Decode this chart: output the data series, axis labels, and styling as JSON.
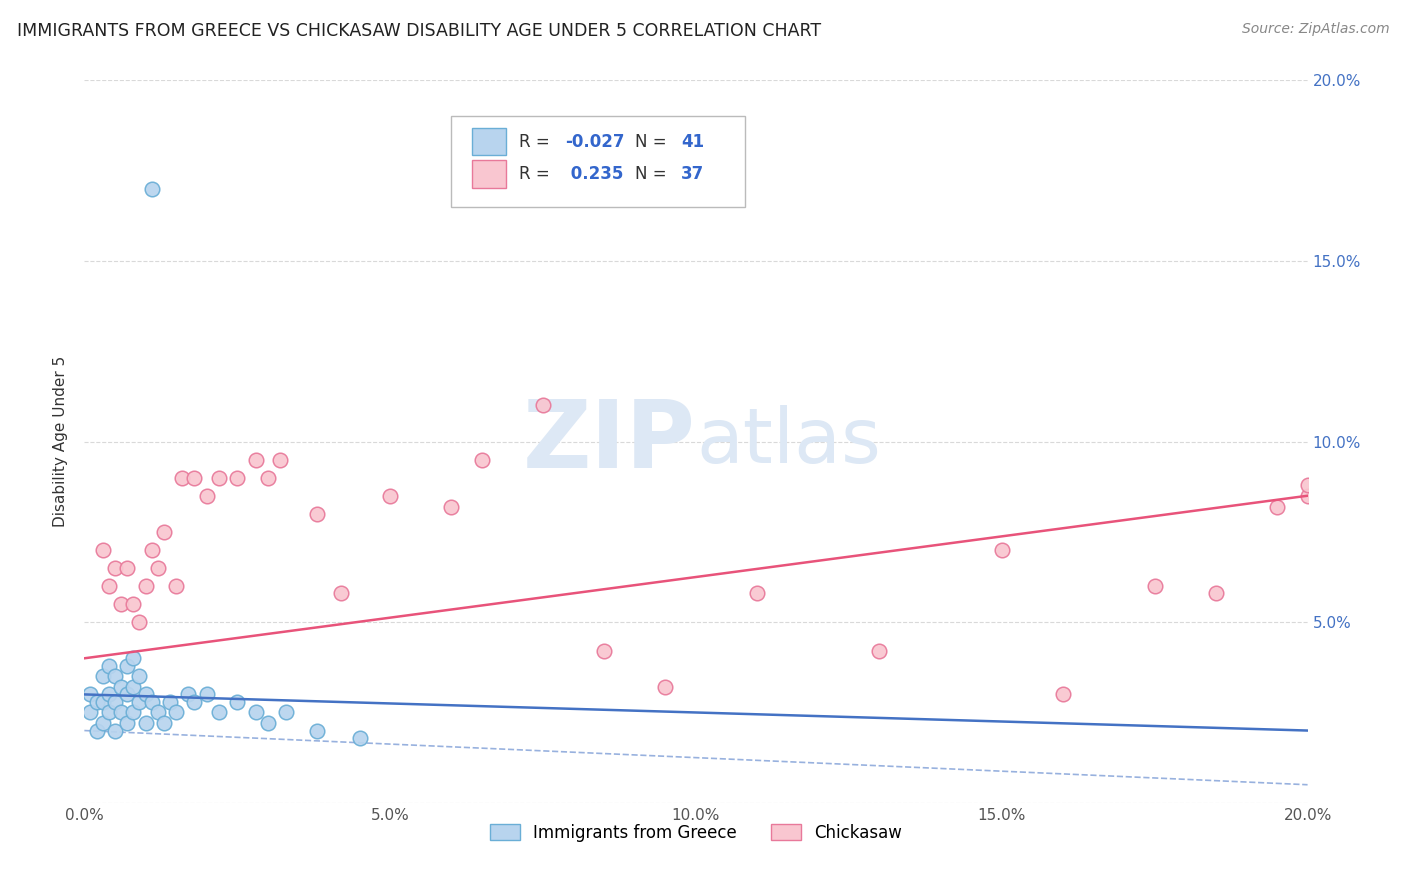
{
  "title": "IMMIGRANTS FROM GREECE VS CHICKASAW DISABILITY AGE UNDER 5 CORRELATION CHART",
  "source": "Source: ZipAtlas.com",
  "ylabel": "Disability Age Under 5",
  "xlim": [
    0.0,
    0.2
  ],
  "ylim": [
    0.0,
    0.2
  ],
  "xticks": [
    0.0,
    0.05,
    0.1,
    0.15,
    0.2
  ],
  "yticks": [
    0.0,
    0.05,
    0.1,
    0.15,
    0.2
  ],
  "series1_label": "Immigrants from Greece",
  "series1_R": "-0.027",
  "series1_N": "41",
  "series1_color": "#b8d4ee",
  "series1_edge": "#6aaed6",
  "series2_label": "Chickasaw",
  "series2_R": "0.235",
  "series2_N": "37",
  "series2_color": "#f9c6d0",
  "series2_edge": "#e8799a",
  "line1_color": "#4472c4",
  "line2_color": "#e8537a",
  "watermark_color": "#dde8f5",
  "bg_color": "#ffffff",
  "grid_color": "#d0d0d0",
  "series1_x": [
    0.001,
    0.001,
    0.002,
    0.002,
    0.003,
    0.003,
    0.003,
    0.004,
    0.004,
    0.004,
    0.005,
    0.005,
    0.005,
    0.006,
    0.006,
    0.007,
    0.007,
    0.007,
    0.008,
    0.008,
    0.008,
    0.009,
    0.009,
    0.01,
    0.01,
    0.011,
    0.012,
    0.013,
    0.014,
    0.015,
    0.017,
    0.018,
    0.02,
    0.022,
    0.025,
    0.028,
    0.03,
    0.033,
    0.038,
    0.045,
    0.011
  ],
  "series1_y": [
    0.025,
    0.03,
    0.02,
    0.028,
    0.022,
    0.028,
    0.035,
    0.025,
    0.03,
    0.038,
    0.02,
    0.028,
    0.035,
    0.025,
    0.032,
    0.022,
    0.03,
    0.038,
    0.025,
    0.032,
    0.04,
    0.028,
    0.035,
    0.022,
    0.03,
    0.028,
    0.025,
    0.022,
    0.028,
    0.025,
    0.03,
    0.028,
    0.03,
    0.025,
    0.028,
    0.025,
    0.022,
    0.025,
    0.02,
    0.018,
    0.17
  ],
  "series2_x": [
    0.003,
    0.004,
    0.005,
    0.006,
    0.007,
    0.008,
    0.009,
    0.01,
    0.011,
    0.012,
    0.013,
    0.015,
    0.016,
    0.018,
    0.02,
    0.022,
    0.025,
    0.028,
    0.03,
    0.032,
    0.038,
    0.042,
    0.05,
    0.06,
    0.065,
    0.075,
    0.085,
    0.095,
    0.11,
    0.13,
    0.15,
    0.16,
    0.175,
    0.185,
    0.195,
    0.2,
    0.2
  ],
  "series2_y": [
    0.07,
    0.06,
    0.065,
    0.055,
    0.065,
    0.055,
    0.05,
    0.06,
    0.07,
    0.065,
    0.075,
    0.06,
    0.09,
    0.09,
    0.085,
    0.09,
    0.09,
    0.095,
    0.09,
    0.095,
    0.08,
    0.058,
    0.085,
    0.082,
    0.095,
    0.11,
    0.042,
    0.032,
    0.058,
    0.042,
    0.07,
    0.03,
    0.06,
    0.058,
    0.082,
    0.085,
    0.088
  ],
  "line1_x0": 0.0,
  "line1_x1": 0.2,
  "line1_y0": 0.03,
  "line1_y1": 0.02,
  "line1_dash_y0": 0.02,
  "line1_dash_y1": 0.005,
  "line2_x0": 0.0,
  "line2_x1": 0.2,
  "line2_y0": 0.04,
  "line2_y1": 0.085
}
